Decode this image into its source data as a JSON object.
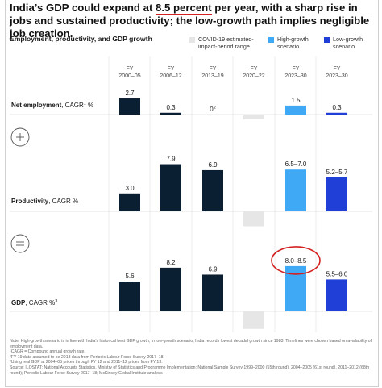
{
  "title_parts": [
    "India’s GDP could expand at ",
    "8.5 percent",
    " per year, with a sharp rise in jobs and sustained productivity; the low-growth path implies negligible job creation."
  ],
  "subhead": "Employment, productivity, and GDP growth",
  "legend": [
    {
      "label": "COVID-19 estimated-impact-period range",
      "color": "#e6e6e6"
    },
    {
      "label": "High-growth scenario",
      "color": "#3fa9f5"
    },
    {
      "label": "Low-growth scenario",
      "color": "#1f3fd6"
    }
  ],
  "colors": {
    "historic": "#0b1f33",
    "covid": "#e6e6e6",
    "high": "#3fa9f5",
    "low": "#1f3fd6",
    "highlight_circle": "#d42020"
  },
  "chart_data": {
    "type": "bar",
    "categories": [
      {
        "line1": "FY",
        "line2": "2000–05"
      },
      {
        "line1": "FY",
        "line2": "2006–12"
      },
      {
        "line1": "FY",
        "line2": "2013–19"
      },
      {
        "line1": "FY",
        "line2": "2020–22"
      },
      {
        "line1": "FY",
        "line2": "2023–30"
      },
      {
        "line1": "FY",
        "line2": "2023–30"
      }
    ],
    "panels": [
      {
        "label": "Net employment",
        "unit": ", CAGR",
        "unit_sup": "1",
        "unit_suffix": " %",
        "symbol": "plus",
        "values": [
          2.7,
          0.3,
          0,
          null,
          1.5,
          0.3
        ],
        "value_labels": [
          "2.7",
          "0.3",
          "0",
          "",
          "1.5",
          "0.3"
        ],
        "value_label_sups": [
          "",
          "",
          "2",
          "",
          "",
          ""
        ],
        "covid_range": [
          -0.8,
          0
        ]
      },
      {
        "label": "Productivity",
        "unit": ", CAGR %",
        "unit_sup": "",
        "unit_suffix": "",
        "symbol": "equals",
        "values": [
          3.0,
          7.9,
          6.9,
          null,
          7.0,
          5.7
        ],
        "value_labels": [
          "3.0",
          "7.9",
          "6.9",
          "",
          "6.5–7.0",
          "5.2–5.7"
        ],
        "value_label_sups": [
          "",
          "",
          "",
          "",
          "",
          ""
        ],
        "covid_range": [
          -2.5,
          0
        ]
      },
      {
        "label": "GDP",
        "unit": ", CAGR %",
        "unit_sup": "3",
        "unit_suffix": "",
        "symbol": "",
        "values": [
          5.6,
          8.2,
          6.9,
          null,
          8.5,
          6.0
        ],
        "value_labels": [
          "5.6",
          "8.2",
          "6.9",
          "",
          "8.0–8.5",
          "5.5–6.0"
        ],
        "value_label_sups": [
          "",
          "",
          "",
          "",
          "",
          ""
        ],
        "covid_range": [
          -3.3,
          0
        ]
      }
    ],
    "series_colors": [
      "historic",
      "historic",
      "historic",
      "covid",
      "high",
      "low"
    ]
  },
  "notes": [
    "Note: High-growth scenario is in line with India’s historical best GDP growth; in low-growth scenario, India records lowest decadal growth since 1983. Timelines were chosen based on availability of employment data.",
    "¹CAGR = Compound annual growth rate.",
    "²FY 19 data assumed to be 2018 data from Periodic Labour Force Survey 2017–18.",
    "³Using real GDP at 2004–05 prices through FY 12 and 2011–12 prices from FY 13.",
    "Source: ILOSTAT; National Accounts Statistics, Ministry of Statistics and Programme Implementation; National Sample Survey 1999–2000 (55th round), 2004–2005 (61st round), 2011–2012 (68th round); Periodic Labour Force Survey 2017–18; McKinsey Global Institute analysis"
  ]
}
